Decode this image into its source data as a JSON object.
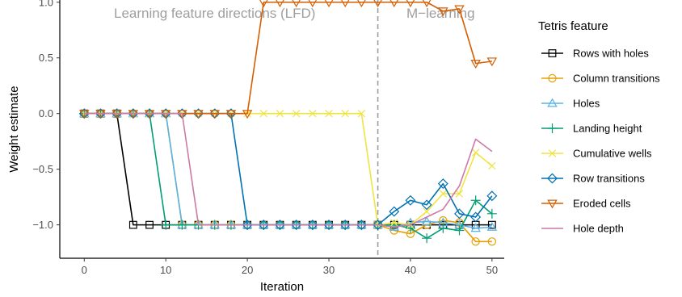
{
  "chart_data": {
    "type": "line",
    "xlabel": "Iteration",
    "ylabel": "Weight estimate",
    "xlim": [
      -3,
      51.5
    ],
    "ylim": [
      -1.3,
      1.02
    ],
    "x_ticks": [
      0,
      10,
      20,
      30,
      40,
      50
    ],
    "x_tick_labels": [
      "0",
      "10",
      "20",
      "30",
      "40",
      "50"
    ],
    "y_ticks": [
      -1.0,
      -0.5,
      0.0,
      0.5,
      1.0
    ],
    "y_tick_labels": [
      "−1.0",
      "−0.5",
      "0.0",
      "0.5",
      "1.0"
    ],
    "grid": false,
    "legend_placement": "right",
    "legend_title": "Tetris feature",
    "phase_divider_x": 36,
    "phases": [
      {
        "label": "Learning feature directions (LFD)",
        "x_center": 16
      },
      {
        "label": "M−learning",
        "x_center": 43.7
      }
    ],
    "x": [
      0,
      2,
      4,
      6,
      8,
      10,
      12,
      14,
      16,
      18,
      20,
      22,
      24,
      26,
      28,
      30,
      32,
      34,
      36,
      38,
      40,
      42,
      44,
      46,
      48,
      50
    ],
    "series": [
      {
        "name": "Rows with holes",
        "color": "#000000",
        "marker": "square",
        "values": [
          0,
          0,
          0,
          -1,
          -1,
          -1,
          -1,
          -1,
          -1,
          -1,
          -1,
          -1,
          -1,
          -1,
          -1,
          -1,
          -1,
          -1,
          -1,
          -1,
          -1,
          -1,
          -1,
          -1,
          -1,
          -1
        ]
      },
      {
        "name": "Column transitions",
        "color": "#E69F00",
        "marker": "circle",
        "values": [
          0,
          0,
          0,
          0,
          0,
          0,
          -1,
          -1,
          -1,
          -1,
          -1,
          -1,
          -1,
          -1,
          -1,
          -1,
          -1,
          -1,
          -1,
          -1.05,
          -1.08,
          -1.0,
          -0.96,
          -0.98,
          -1.15,
          -1.15
        ]
      },
      {
        "name": "Holes",
        "color": "#56B4E9",
        "marker": "triangle-up",
        "values": [
          0,
          0,
          0,
          0,
          0,
          0,
          -1,
          -1,
          -1,
          -1,
          -1,
          -1,
          -1,
          -1,
          -1,
          -1,
          -1,
          -1,
          -1,
          -1.02,
          -0.98,
          -0.97,
          -0.98,
          -1.0,
          -1.03,
          -1.02
        ]
      },
      {
        "name": "Landing height",
        "color": "#009E73",
        "marker": "plus",
        "values": [
          0,
          0,
          0,
          0,
          0,
          -1,
          -1,
          -1,
          -1,
          -1,
          -1,
          -1,
          -1,
          -1,
          -1,
          -1,
          -1,
          -1,
          -1,
          -1.0,
          -1.03,
          -1.12,
          -1.03,
          -1.05,
          -0.78,
          -0.9
        ]
      },
      {
        "name": "Cumulative wells",
        "color": "#F0E442",
        "marker": "x",
        "values": [
          0,
          0,
          0,
          0,
          0,
          0,
          0,
          0,
          0,
          0,
          0,
          0,
          0,
          0,
          0,
          0,
          0,
          0,
          -1,
          -0.98,
          -1.0,
          -0.88,
          -0.72,
          -0.72,
          -0.35,
          -0.47
        ]
      },
      {
        "name": "Row transitions",
        "color": "#0072B2",
        "marker": "diamond",
        "values": [
          0,
          0,
          0,
          0,
          0,
          0,
          0,
          0,
          0,
          0,
          -1,
          -1,
          -1,
          -1,
          -1,
          -1,
          -1,
          -1,
          -1,
          -0.88,
          -0.78,
          -0.82,
          -0.63,
          -0.9,
          -0.93,
          -0.74
        ]
      },
      {
        "name": "Eroded cells",
        "color": "#D55E00",
        "marker": "triangle-down",
        "values": [
          0,
          0,
          0,
          0,
          0,
          0,
          0,
          0,
          0,
          0,
          0,
          1,
          1,
          1,
          1,
          1,
          1,
          1,
          1,
          1,
          1,
          1,
          0.92,
          0.94,
          0.45,
          0.47
        ]
      },
      {
        "name": "Hole depth",
        "color": "#CC79A7",
        "marker": "none",
        "values": [
          0,
          0,
          0,
          0,
          0,
          0,
          0,
          -1,
          -1,
          -1,
          -1,
          -1,
          -1,
          -1,
          -1,
          -1,
          -1,
          -1,
          -1,
          -1.02,
          -1.0,
          -0.93,
          -0.86,
          -0.65,
          -0.23,
          -0.34
        ]
      }
    ]
  }
}
